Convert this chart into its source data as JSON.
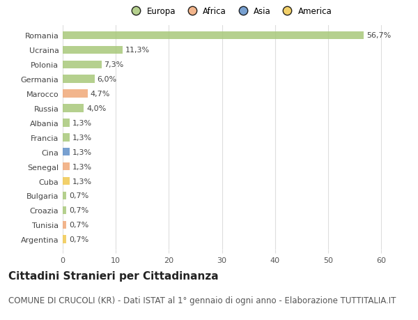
{
  "categories": [
    "Romania",
    "Ucraina",
    "Polonia",
    "Germania",
    "Marocco",
    "Russia",
    "Albania",
    "Francia",
    "Cina",
    "Senegal",
    "Cuba",
    "Bulgaria",
    "Croazia",
    "Tunisia",
    "Argentina"
  ],
  "values": [
    56.7,
    11.3,
    7.3,
    6.0,
    4.7,
    4.0,
    1.3,
    1.3,
    1.3,
    1.3,
    1.3,
    0.7,
    0.7,
    0.7,
    0.7
  ],
  "labels": [
    "56,7%",
    "11,3%",
    "7,3%",
    "6,0%",
    "4,7%",
    "4,0%",
    "1,3%",
    "1,3%",
    "1,3%",
    "1,3%",
    "1,3%",
    "0,7%",
    "0,7%",
    "0,7%",
    "0,7%"
  ],
  "continents": [
    "Europa",
    "Europa",
    "Europa",
    "Europa",
    "Africa",
    "Europa",
    "Europa",
    "Europa",
    "Asia",
    "Africa",
    "America",
    "Europa",
    "Europa",
    "Africa",
    "America"
  ],
  "continent_colors": {
    "Europa": "#a8c87a",
    "Africa": "#f0a878",
    "Asia": "#6090c8",
    "America": "#f0c850"
  },
  "legend_order": [
    "Europa",
    "Africa",
    "Asia",
    "America"
  ],
  "xlim": [
    0,
    63
  ],
  "xticks": [
    0,
    10,
    20,
    30,
    40,
    50,
    60
  ],
  "background_color": "#ffffff",
  "grid_color": "#dddddd",
  "bar_height": 0.55,
  "title": "Cittadini Stranieri per Cittadinanza",
  "subtitle": "COMUNE DI CRUCOLI (KR) - Dati ISTAT al 1° gennaio di ogni anno - Elaborazione TUTTITALIA.IT",
  "title_fontsize": 11,
  "subtitle_fontsize": 8.5,
  "label_fontsize": 8,
  "tick_fontsize": 8,
  "legend_fontsize": 8.5
}
